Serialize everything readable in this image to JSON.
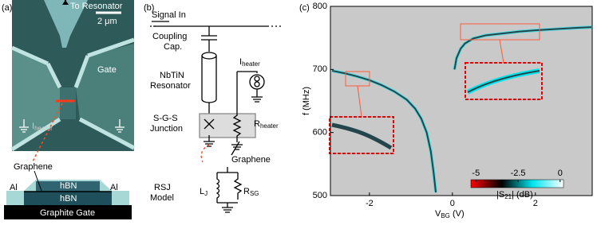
{
  "panel_a": {
    "label": "(a)",
    "to_resonator": "To Resonator",
    "scale_bar": "2 μm",
    "gate": "Gate",
    "i_heater": {
      "main": "I",
      "sub": "heater"
    },
    "graphene": "Graphene",
    "stack": {
      "al_left": "Al",
      "al_right": "Al",
      "hbn_top": "hBN",
      "hbn_bottom": "hBN",
      "graphite": "Graphite Gate"
    }
  },
  "panel_b": {
    "label": "(b)",
    "signal_in": "Signal In",
    "coupling": [
      "Coupling",
      "Cap."
    ],
    "resonator": [
      "NbTiN",
      "Resonator"
    ],
    "i_heater": {
      "main": "I",
      "sub": "heater"
    },
    "junction": [
      "S-G-S",
      "Junction"
    ],
    "r_heater": {
      "main": "R",
      "sub": "heater"
    },
    "graphene": "Graphene",
    "rsj": [
      "RSJ",
      "Model"
    ],
    "lj": {
      "main": "L",
      "sub": "J"
    },
    "rsg": {
      "main": "R",
      "sub": "SG"
    }
  },
  "chart_data": {
    "type": "line",
    "label": "(c)",
    "x_label": {
      "main": "V",
      "sub": "BG",
      "unit": " (V)"
    },
    "y_label": "f (MHz)",
    "x": [
      -2.9,
      -2.6,
      -2.3,
      -2.0,
      -1.7,
      -1.4,
      -1.1,
      -0.9,
      -0.75,
      -0.62,
      -0.52,
      -0.45,
      -0.4,
      -0.2,
      0.05,
      0.1,
      0.2,
      0.3,
      0.5,
      0.8,
      1.2,
      1.6,
      2.0,
      2.5,
      3.0,
      3.35
    ],
    "values": [
      698,
      694,
      689,
      683,
      675,
      665,
      652,
      638,
      622,
      600,
      570,
      535,
      505,
      null,
      700,
      718,
      733,
      741,
      749,
      754,
      757,
      760,
      762,
      764,
      766,
      767
    ],
    "color": "#23464c",
    "background": "#c9c9c9",
    "xlim": [
      -2.94,
      3.37
    ],
    "ylim": [
      500,
      800
    ],
    "xticks": [
      -2,
      0,
      2
    ],
    "yticks": [
      500,
      600,
      700,
      800
    ],
    "colorbar": {
      "label": {
        "main": "|S",
        "sub": "21",
        "unit": "| (dB)"
      },
      "lim": [
        -5.3,
        0.2
      ],
      "ticks": [
        -5,
        -2.5,
        0
      ],
      "colors": [
        "#ff0000",
        "#000000",
        "#00e5ee",
        "#ffffff"
      ]
    }
  }
}
